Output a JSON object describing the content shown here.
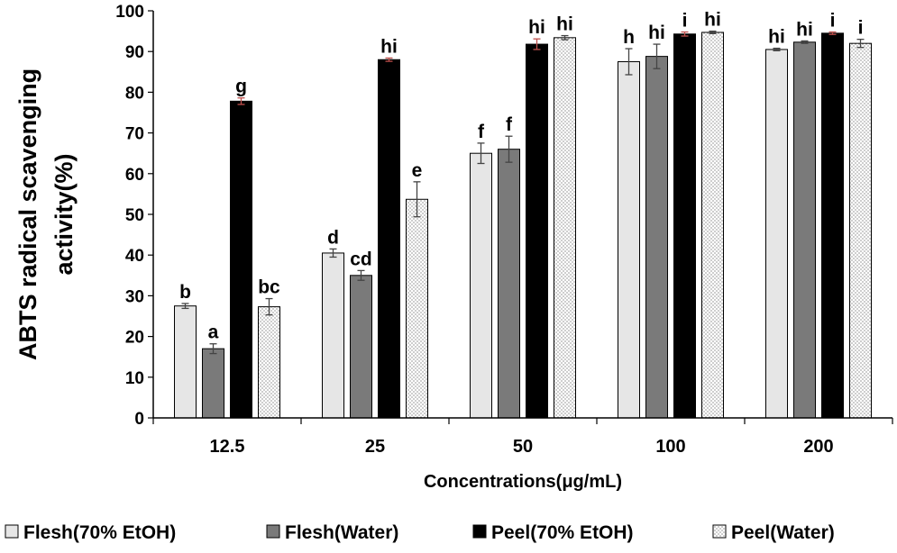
{
  "chart_data": {
    "type": "bar",
    "title": "",
    "xlabel": "Concentrations(μg/mL)",
    "ylabel": [
      "ABTS radical scavenging",
      "activity(%)"
    ],
    "ylim": [
      0,
      100
    ],
    "yticks": [
      0,
      10,
      20,
      30,
      40,
      50,
      60,
      70,
      80,
      90,
      100
    ],
    "categories": [
      "12.5",
      "25",
      "50",
      "100",
      "200"
    ],
    "legend_position": "bottom",
    "series": [
      {
        "name": "Flesh(70% EtOH)",
        "fill": "#e6e6e6",
        "pattern": "solid",
        "values": [
          27.5,
          40.5,
          65,
          87.5,
          90.5
        ],
        "errors": [
          0.6,
          1.0,
          2.5,
          3.2,
          0.3
        ],
        "letters": [
          "b",
          "d",
          "f",
          "h",
          "hi"
        ]
      },
      {
        "name": "Flesh(Water)",
        "fill": "#7a7a7a",
        "pattern": "solid",
        "values": [
          17,
          35,
          66,
          88.8,
          92.3
        ],
        "errors": [
          1.2,
          1.2,
          3.2,
          3.0,
          0.3
        ],
        "letters": [
          "a",
          "cd",
          "f",
          "hi",
          "hi"
        ]
      },
      {
        "name": "Peel(70% EtOH)",
        "fill": "#000000",
        "pattern": "solid",
        "values": [
          77.8,
          88,
          91.8,
          94.3,
          94.5
        ],
        "errors": [
          0.8,
          0.4,
          1.3,
          0.5,
          0.3
        ],
        "letters": [
          "g",
          "hi",
          "hi",
          "i",
          "i"
        ]
      },
      {
        "name": "Peel(Water)",
        "fill": "#ffffff",
        "pattern": "dotted",
        "values": [
          27.3,
          53.7,
          93.4,
          94.7,
          92
        ],
        "errors": [
          2.0,
          4.3,
          0.5,
          0.3,
          1.0
        ],
        "letters": [
          "bc",
          "e",
          "hi",
          "hi",
          "i"
        ]
      }
    ]
  }
}
